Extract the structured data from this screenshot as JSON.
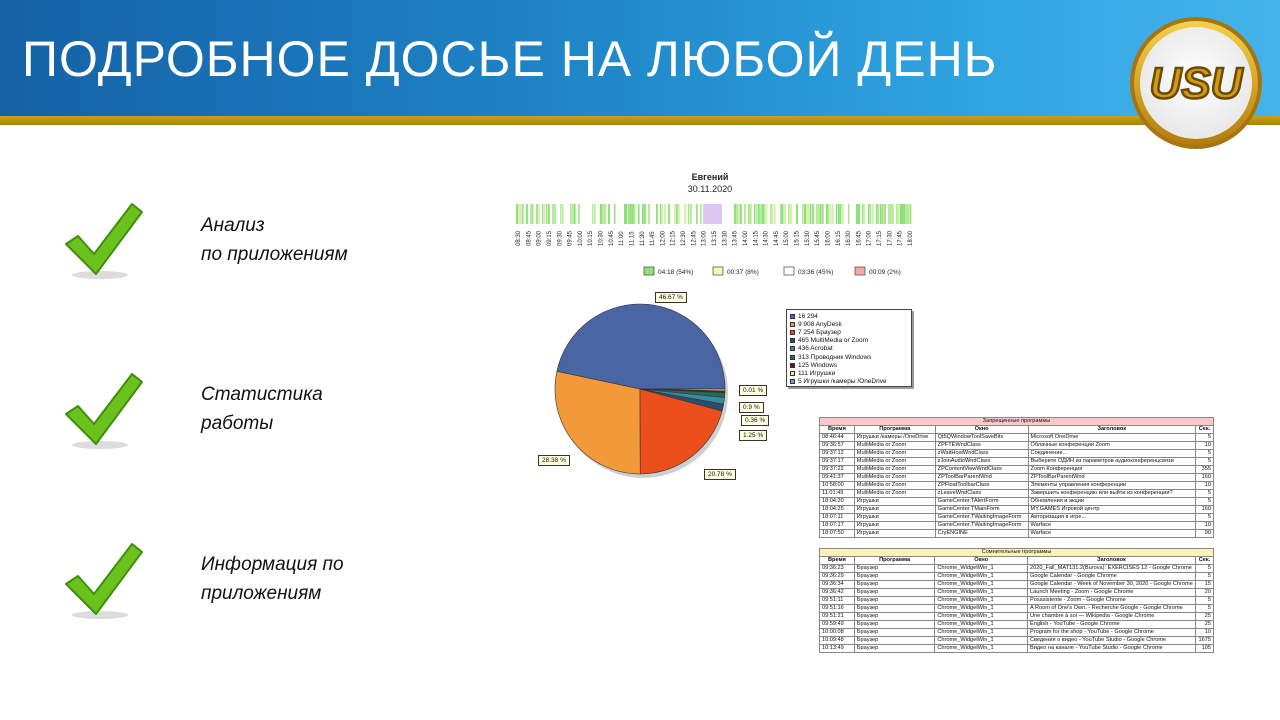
{
  "slide": {
    "title": "ПОДРОБНОЕ ДОСЬЕ НА ЛЮБОЙ ДЕНЬ",
    "logo_text": "USU",
    "brand_colors": {
      "header": "#1f86c8",
      "accent": "#c9a21a",
      "check": "#6cc21c"
    }
  },
  "features": [
    {
      "line1": "Анализ",
      "line2": "по приложениям"
    },
    {
      "line1": "Статистика",
      "line2": "работы"
    },
    {
      "line1": "Информация по",
      "line2": "приложениям"
    }
  ],
  "timeline": {
    "name": "Евгений",
    "date": "30.11.2020",
    "ticks": [
      "08:30",
      "08:45",
      "09:00",
      "09:15",
      "09:30",
      "09:45",
      "10:00",
      "10:15",
      "10:30",
      "10:45",
      "11:00",
      "11:15",
      "11:30",
      "11:45",
      "12:00",
      "12:15",
      "12:30",
      "12:45",
      "13:00",
      "13:15",
      "13:30",
      "13:45",
      "14:00",
      "14:15",
      "14:30",
      "14:45",
      "15:00",
      "15:15",
      "15:30",
      "15:45",
      "16:00",
      "16:15",
      "16:30",
      "16:45",
      "17:00",
      "17:15",
      "17:30",
      "17:45",
      "18:00"
    ],
    "legend": [
      {
        "label": "04:18 (54%)",
        "color": "#8ee07a"
      },
      {
        "label": "00:37 (8%)",
        "color": "#fbf5b8"
      },
      {
        "label": "03:36 (45%)",
        "color": "#ffffff"
      },
      {
        "label": "00:09 (2%)",
        "color": "#f4a8a8"
      }
    ]
  },
  "chart_data": {
    "type": "pie",
    "slices": [
      {
        "label": "16 294",
        "value": 46.67,
        "color": "#4a65a4"
      },
      {
        "label": "9 908 AnyDesk",
        "value": 28.38,
        "color": "#f29a3a"
      },
      {
        "label": "7 254 Браузер",
        "value": 20.78,
        "color": "#ec4f1c"
      },
      {
        "label": "465 MultiMedia or Zoom",
        "value": 1.33,
        "color": "#2a4e6e"
      },
      {
        "label": "436 Acrobat",
        "value": 1.25,
        "color": "#3c8aa0"
      },
      {
        "label": "313 Проводник Windows",
        "value": 0.9,
        "color": "#1e6f5a"
      },
      {
        "label": "125 Windows",
        "value": 0.36,
        "color": "#7a1010"
      },
      {
        "label": "111 Игрушки",
        "value": 0.32,
        "color": "#f7e6a0"
      },
      {
        "label": "5 Игрушки /камеры /OneDrive",
        "value": 0.01,
        "color": "#6aa6b8"
      }
    ],
    "data_labels": [
      "46.67 %",
      "28.38 %",
      "20.78 %",
      "0.01 %",
      "0.9 %",
      "0.36 %",
      "1.25 %"
    ]
  },
  "forbidden": {
    "caption": "Запрещенные программы",
    "headers": [
      "Время",
      "Программа",
      "Окно",
      "Заголовок",
      "Сек."
    ],
    "rows": [
      [
        "08:46:44",
        "Игрушки /камеры /OneDrive",
        "Qt5QWindowToolSaveBits",
        "Microsoft OneDrive",
        "5"
      ],
      [
        "09:36:57",
        "MultiMedia or Zoom",
        "ZPFTEWndClass",
        "Облачные конференции Zoom",
        "10"
      ],
      [
        "09:37:12",
        "MultiMedia or Zoom",
        "zWaitHostWndClass",
        "Соединение...",
        "5"
      ],
      [
        "09:37:17",
        "MultiMedia or Zoom",
        "zJoinAudioWndClass",
        "Выберите ОДИН из параметров аудиоконференцсвязи",
        "5"
      ],
      [
        "09:37:22",
        "MultiMedia or Zoom",
        "ZPContentViewWndClass",
        "Zoom Конференция",
        "355"
      ],
      [
        "09:41:37",
        "MultiMedia or Zoom",
        "ZPToolBarParentWnd",
        "ZPToolBarParentWnd",
        "160"
      ],
      [
        "10:58:00",
        "MultiMedia or Zoom",
        "ZPFloatToolbarClass",
        "Элементы управления конференции",
        "10"
      ],
      [
        "11:01:49",
        "MultiMedia or Zoom",
        "zLeaveWndClass",
        "Завершить конференцию или выйти из конференции?",
        "5"
      ],
      [
        "18:04:20",
        "Игрушки",
        "GameCenter.TAlertForm",
        "Обновления и акции",
        "5"
      ],
      [
        "18:04:25",
        "Игрушки",
        "GameCenter.TMainForm",
        "MY.GAMES Игровой центр",
        "160"
      ],
      [
        "18:07:11",
        "Игрушки",
        "GameCenter.TWaitingImageForm",
        "Авторизация в игре...",
        "5"
      ],
      [
        "18:07:17",
        "Игрушки",
        "GameCenter.TWaitingImageForm",
        "Warface",
        "10"
      ],
      [
        "18:07:50",
        "Игрушки",
        "CryENGINE",
        "Warface",
        "90"
      ]
    ]
  },
  "suspicious": {
    "caption": "Сомнительные программы",
    "headers": [
      "Время",
      "Программа",
      "Окно",
      "Заголовок",
      "Сек."
    ],
    "rows": [
      [
        "09:36:23",
        "Браузер",
        "Chrome_WidgetWin_1",
        "2020_Fall_MAT131.2(Burova): EXERCISES 12 - Google Chrome",
        "5"
      ],
      [
        "09:36:29",
        "Браузер",
        "Chrome_WidgetWin_1",
        "Google Calendar - Google Chrome",
        "5"
      ],
      [
        "09:36:34",
        "Браузер",
        "Chrome_WidgetWin_1",
        "Google Calendar - Week of November 30, 2020 - Google Chrome",
        "15"
      ],
      [
        "09:36:42",
        "Браузер",
        "Chrome_WidgetWin_1",
        "Launch Meeting - Zoom - Google Chrome",
        "20"
      ],
      [
        "09:51:11",
        "Браузер",
        "Chrome_WidgetWin_1",
        "Posasistente - Zoom - Google Chrome",
        "5"
      ],
      [
        "09:51:16",
        "Браузер",
        "Chrome_WidgetWin_1",
        "A Room of One's Own. - Recherche Google - Google Chrome",
        "5"
      ],
      [
        "09:51:21",
        "Браузер",
        "Chrome_WidgetWin_1",
        "Une chambre à soi — Wikipedia - Google Chrome",
        "25"
      ],
      [
        "09:59:49",
        "Браузер",
        "Chrome_WidgetWin_1",
        "English - YouTube - Google Chrome",
        "25"
      ],
      [
        "10:00:08",
        "Браузер",
        "Chrome_WidgetWin_1",
        "Program for the shop - YouTube - Google Chrome",
        "10"
      ],
      [
        "10:09:48",
        "Браузер",
        "Chrome_WidgetWin_1",
        "Сведения о видео - YouTube Studio - Google Chrome",
        "1675"
      ],
      [
        "10:13:49",
        "Браузер",
        "Chrome_WidgetWin_1",
        "Видео на канале - YouTube Studio - Google Chrome",
        "105"
      ]
    ]
  }
}
